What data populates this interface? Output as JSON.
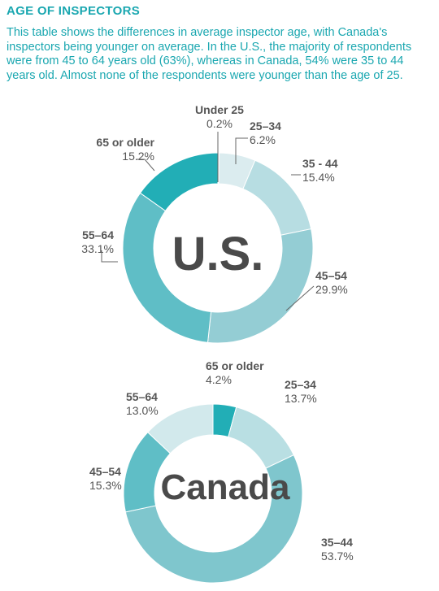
{
  "header": {
    "title": "AGE OF INSPECTORS",
    "description": "This table shows the differences in average inspector age, with Canada's inspectors being younger on average. In the U.S., the majority of respondents were from 45 to 64 years old (63%), whereas in Canada, 54% were 35 to 44 years old. Almost none of the respondents were younger than the age of 25."
  },
  "chart_data": [
    {
      "type": "pie",
      "center_label": "U.S.",
      "slices": [
        {
          "label": "Under 25",
          "value": 0.2,
          "value_text": "0.2%",
          "color": "#e9f3f5"
        },
        {
          "label": "25–34",
          "value": 6.2,
          "value_text": "6.2%",
          "color": "#dbecef"
        },
        {
          "label": "35 - 44",
          "value": 15.4,
          "value_text": "15.4%",
          "color": "#b7dde2"
        },
        {
          "label": "45–54",
          "value": 29.9,
          "value_text": "29.9%",
          "color": "#94cdd4"
        },
        {
          "label": "55–64",
          "value": 33.1,
          "value_text": "33.1%",
          "color": "#5fbec6"
        },
        {
          "label": "65 or older",
          "value": 15.2,
          "value_text": "15.2%",
          "color": "#22aeb6"
        }
      ]
    },
    {
      "type": "pie",
      "center_label": "Canada",
      "slices": [
        {
          "label": "65 or older",
          "value": 4.2,
          "value_text": "4.2%",
          "color": "#22aeb6"
        },
        {
          "label": "25–34",
          "value": 13.7,
          "value_text": "13.7%",
          "color": "#b9dfe3"
        },
        {
          "label": "35–44",
          "value": 53.7,
          "value_text": "53.7%",
          "color": "#7fc6cd"
        },
        {
          "label": "45–54",
          "value": 15.3,
          "value_text": "15.3%",
          "color": "#5fbec6"
        },
        {
          "label": "55–64",
          "value": 13.0,
          "value_text": "13.0%",
          "color": "#d2e9ec"
        }
      ]
    }
  ]
}
